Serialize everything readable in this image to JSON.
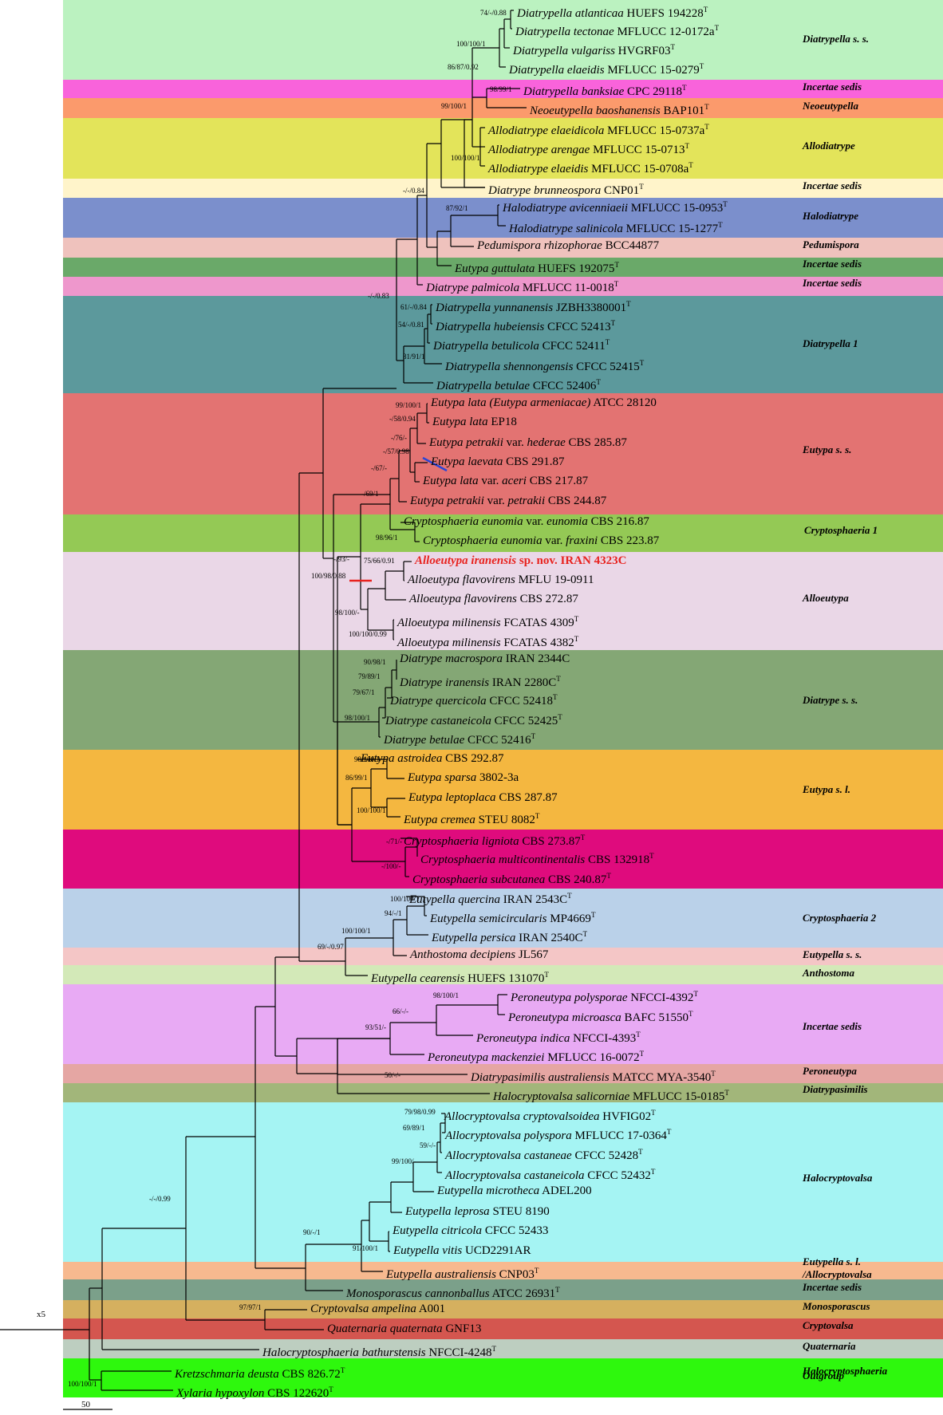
{
  "clades": [
    {
      "label": "Diatrypella s. s.",
      "color": "#bbf2c0"
    },
    {
      "label": "Incertae sedis",
      "color": "#f963db"
    },
    {
      "label": "Neoeutypella",
      "color": "#fb9a6c"
    },
    {
      "label": "Allodiatrype",
      "color": "#e3e45a"
    },
    {
      "label": "Incertae sedis",
      "color": "#fff4ca"
    },
    {
      "label": "Halodiatrype",
      "color": "#7b8fcc"
    },
    {
      "label": "Pedumispora",
      "color": "#efc2bd"
    },
    {
      "label": "Incertae sedis",
      "color": "#6aa969"
    },
    {
      "label": "Incertae sedis",
      "color": "#ee97cc"
    },
    {
      "label": "Diatrypella 1",
      "color": "#5c999c"
    },
    {
      "label": "Eutypa s. s.",
      "color": "#e37372"
    },
    {
      "label": "Cryptosphaeria 1",
      "color": "#94c955"
    },
    {
      "label": "Alloeutypa",
      "color": "#ead7e7"
    },
    {
      "label": "Diatrype s. s.",
      "color": "#84a775"
    },
    {
      "label": "Eutypa s. l.",
      "color": "#f4b740"
    },
    {
      "label": "Cryptosphaeria 2",
      "color": "#df0b7d"
    },
    {
      "label": "Eutypella s. s.",
      "color": "#bad1e9"
    },
    {
      "label": "Anthostoma",
      "color": "#f4c6c6"
    },
    {
      "label": "Incertae sedis",
      "color": "#d3e9b8"
    },
    {
      "label": "Peroneutypa",
      "color": "#e8aaf4"
    },
    {
      "label": "Diatrypasimilis",
      "color": "#e5a6a3"
    },
    {
      "label": "Halocryptovalsa",
      "color": "#a2b67a"
    },
    {
      "label": "Eutypella s. l.",
      "label2": "/Allocryptovalsa",
      "color": "#a5f4f3"
    },
    {
      "label": "Incertae sedis",
      "color": "#f7b98f"
    },
    {
      "label": "Monosporascus",
      "color": "#7ba08a"
    },
    {
      "label": "Cryptovalsa",
      "color": "#d5b05f"
    },
    {
      "label": "Quaternaria",
      "color": "#d4564f"
    },
    {
      "label": "Halocryptosphaeria",
      "color": "#bdcec0"
    },
    {
      "label": "Outgroup",
      "color": "#2ef80d"
    }
  ],
  "taxa": [
    {
      "name": "Diatrypella atlanticaa",
      "strain": "HUEFS 194228",
      "type": true
    },
    {
      "name": "Diatrypella tectonae",
      "strain": "MFLUCC 12-0172a",
      "type": true
    },
    {
      "name": "Diatrypella vulgariss",
      "strain": "HVGRF03",
      "type": true
    },
    {
      "name": "Diatrypella elaeidis",
      "strain": "MFLUCC 15-0279",
      "type": true
    },
    {
      "name": "Diatrypella banksiae",
      "strain": "CPC 29118",
      "type": true
    },
    {
      "name": "Neoeutypella baoshanensis",
      "strain": "BAP101",
      "type": true
    },
    {
      "name": "Allodiatrype elaeidicola",
      "strain": "MFLUCC 15-0737a",
      "type": true
    },
    {
      "name": "Allodiatrype arengae",
      "strain": "MFLUCC 15-0713",
      "type": true
    },
    {
      "name": "Allodiatrype elaeidis",
      "strain": "MFLUCC 15-0708a",
      "type": true
    },
    {
      "name": "Diatrype brunneospora",
      "strain": "CNP01",
      "type": true
    },
    {
      "name": "Halodiatrype avicenniaeii",
      "strain": "MFLUCC 15-0953",
      "type": true
    },
    {
      "name": "Halodiatrype salinicola",
      "strain": "MFLUCC 15-1277",
      "type": true
    },
    {
      "name": "Pedumispora rhizophorae",
      "strain": "BCC44877",
      "type": false
    },
    {
      "name": "Eutypa guttulata",
      "strain": "HUEFS 192075",
      "type": true
    },
    {
      "name": "Diatrype palmicola",
      "strain": "MFLUCC 11-0018",
      "type": true
    },
    {
      "name": "Diatrypella yunnanensis",
      "strain": "JZBH3380001",
      "type": true
    },
    {
      "name": "Diatrypella hubeiensis",
      "strain": "CFCC 52413",
      "type": true
    },
    {
      "name": "Diatrypella betulicola",
      "strain": "CFCC 52411",
      "type": true
    },
    {
      "name": "Diatrypella shennongensis",
      "strain": "CFCC 52415",
      "type": true
    },
    {
      "name": "Diatrypella betulae",
      "strain": "CFCC 52406",
      "type": true
    },
    {
      "name": "Eutypa lata",
      "paren": "Eutypa armeniacae",
      "strain": "ATCC 28120",
      "type": false
    },
    {
      "name": "Eutypa lata",
      "strain": "EP18",
      "type": false
    },
    {
      "name": "Eutypa petrakii",
      "var": "hederae",
      "strain": "CBS 285.87",
      "type": false
    },
    {
      "name": "Eutypa laevata",
      "strain": "CBS 291.87",
      "type": false
    },
    {
      "name": "Eutypa lata",
      "var": "aceri",
      "strain": "CBS 217.87",
      "type": false
    },
    {
      "name": "Eutypa petrakii",
      "var": "petrakii",
      "strain": "CBS 244.87",
      "type": false
    },
    {
      "name": "Cryptosphaeria eunomia",
      "var": "eunomia",
      "strain": "CBS 216.87",
      "type": false
    },
    {
      "name": "Cryptosphaeria eunomia",
      "var": "fraxini",
      "strain": "CBS 223.87",
      "type": false
    },
    {
      "name": "Alloeutypa iranensis",
      "strain": "sp. nov. IRAN 4323C",
      "type": false,
      "highlight": true
    },
    {
      "name": "Alloeutypa flavovirens",
      "strain": "MFLU 19-0911",
      "type": false
    },
    {
      "name": "Alloeutypa flavovirens",
      "strain": "CBS 272.87",
      "type": false
    },
    {
      "name": "Alloeutypa milinensis",
      "strain": "FCATAS 4309",
      "type": true
    },
    {
      "name": "Alloeutypa milinensis",
      "strain": "FCATAS 4382",
      "type": true
    },
    {
      "name": "Diatrype macrospora",
      "strain": "IRAN 2344C",
      "type": false
    },
    {
      "name": "Diatrype iranensis",
      "strain": "IRAN 2280C",
      "type": true
    },
    {
      "name": "Diatrype quercicola",
      "strain": " CFCC 52418",
      "type": true
    },
    {
      "name": "Diatrype castaneicola",
      "strain": "CFCC 52425",
      "type": true
    },
    {
      "name": "Diatrype betulae",
      "strain": "CFCC 52416",
      "type": true
    },
    {
      "name": "Eutypa astroidea",
      "strain": "CBS 292.87",
      "type": false
    },
    {
      "name": "Eutypa sparsa",
      "strain": "3802-3a",
      "type": false
    },
    {
      "name": "Eutypa leptoplaca",
      "strain": "CBS 287.87",
      "type": false
    },
    {
      "name": "Eutypa cremea",
      "strain": "STEU 8082",
      "type": true
    },
    {
      "name": "Cryptosphaeria ligniota",
      "strain": "CBS 273.87",
      "type": true
    },
    {
      "name": "Cryptosphaeria multicontinentalis",
      "strain": "CBS 132918",
      "type": true
    },
    {
      "name": "Cryptosphaeria subcutanea",
      "strain": "CBS 240.87",
      "type": true
    },
    {
      "name": "Eutypella quercina",
      "strain": "IRAN 2543C",
      "type": true
    },
    {
      "name": "Eutypella semicircularis",
      "strain": "MP4669",
      "type": true
    },
    {
      "name": "Eutypella persica",
      "strain": "IRAN 2540C",
      "type": true
    },
    {
      "name": "Anthostoma decipiens",
      "strain": "JL567",
      "type": false
    },
    {
      "name": "Eutypella cearensis",
      "strain": "HUEFS 131070",
      "type": true
    },
    {
      "name": "Peroneutypa polysporae",
      "strain": "NFCCI-4392",
      "type": true
    },
    {
      "name": "Peroneutypa microasca",
      "strain": "BAFC 51550",
      "type": true
    },
    {
      "name": "Peroneutypa indica",
      "strain": "NFCCI-4393",
      "type": true
    },
    {
      "name": "Peroneutypa mackenziei",
      "strain": "MFLUCC 16-0072",
      "type": true
    },
    {
      "name": "Diatrypasimilis australiensis",
      "strain": "MATCC MYA-3540",
      "type": true
    },
    {
      "name": "Halocryptovalsa salicorniae",
      "strain": "MFLUCC 15-0185",
      "type": true
    },
    {
      "name": "Allocryptovalsa cryptovalsoidea",
      "strain": "HVFIG02",
      "type": true
    },
    {
      "name": "Allocryptovalsa polyspora",
      "strain": "MFLUCC 17-0364",
      "type": true
    },
    {
      "name": "Allocryptovalsa castaneae",
      "strain": "CFCC 52428",
      "type": true
    },
    {
      "name": "Allocryptovalsa castaneicola",
      "strain": "CFCC 52432",
      "type": true
    },
    {
      "name": "Eutypella microtheca",
      "strain": "ADEL200",
      "type": false
    },
    {
      "name": "Eutypella leprosa",
      "strain": "STEU 8190",
      "type": false
    },
    {
      "name": "Eutypella citricola",
      "strain": "CFCC 52433",
      "type": false
    },
    {
      "name": "Eutypella vitis",
      "strain": "UCD2291AR",
      "type": false
    },
    {
      "name": "Eutypella australiensis",
      "strain": "CNP03",
      "type": true
    },
    {
      "name": "Monosporascus cannonballus",
      "strain": "ATCC 26931",
      "type": true
    },
    {
      "name": "Cryptovalsa ampelina",
      "strain": "A001",
      "type": false
    },
    {
      "name": "Quaternaria quaternata",
      "strain": "GNF13",
      "type": false
    },
    {
      "name": "Halocryptosphaeria bathurstensis",
      "strain": "NFCCI-4248",
      "type": true
    },
    {
      "name": "Kretzschmaria deusta",
      "strain": "CBS 826.72",
      "type": true
    },
    {
      "name": "Xylaria hypoxylon",
      "strain": "CBS 122620",
      "type": true
    }
  ],
  "type_marker": "T",
  "supports": [
    "74/-/0.88",
    "100/100/1",
    "86/87/0.92",
    "98/99/1",
    "99/100/1",
    "100/100/1",
    "-/-/0.84",
    "87/92/1",
    "-/-/0.83",
    "61/-/0.84",
    "54/-/0.81",
    "81/91/1",
    "99/100/1",
    "-/58/0.94",
    "-/76/-",
    "-/57/0.98",
    "-/67/-",
    "-/69/1",
    "98/96/1",
    "-/93/-",
    "75/66/0.91",
    "100/98/0.88",
    "98/100/-",
    "100/100/0.99",
    "90/98/1",
    "79/89/1",
    "79/67/1",
    "98/100/1",
    "98/100/1",
    "86/99/1",
    "100/100/1",
    "-/71/-",
    "-/100/-",
    "100/100/1",
    "94/-/1",
    "100/100/1",
    "69/-/0.97",
    "98/100/1",
    "66/-/-",
    "93/51/-",
    "50/-/-",
    "79/98/0.99",
    "69/89/1",
    "59/-/-",
    "99/100/-",
    "90/-/1",
    "91/100/1",
    "-/-/0.99",
    "97/97/1",
    "100/100/1"
  ],
  "root_label": "x5",
  "scale_label": "50"
}
